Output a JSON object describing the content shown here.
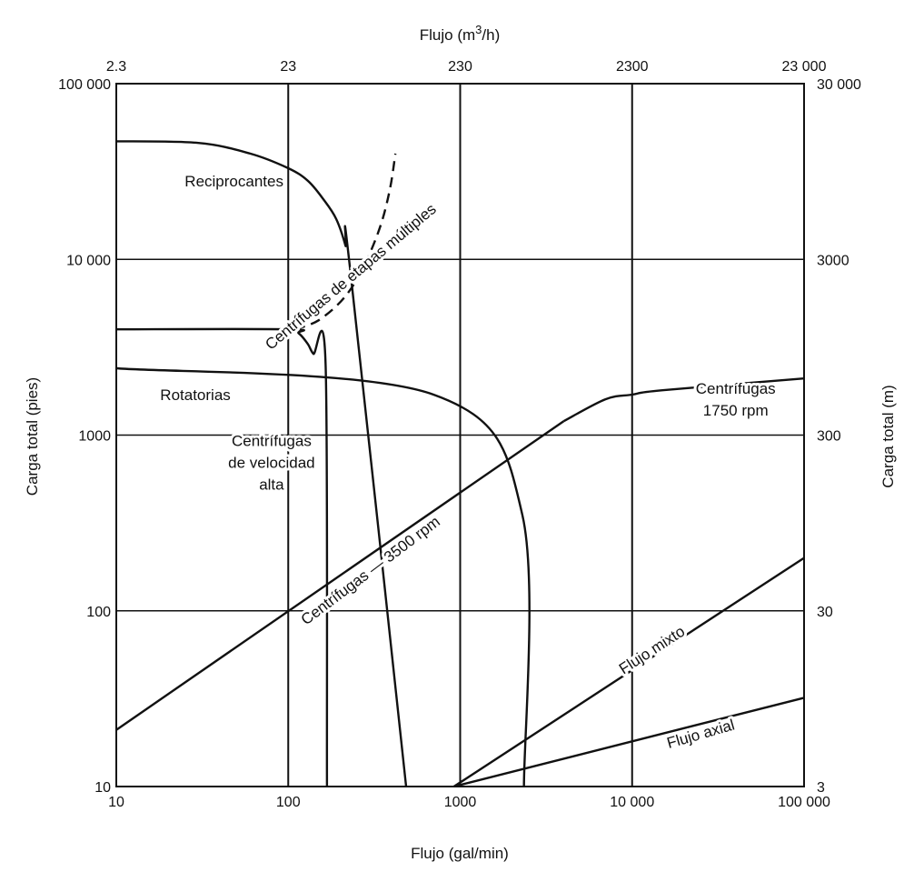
{
  "chart_data": {
    "type": "line",
    "x_scale": "log",
    "y_scale": "log",
    "grid": true,
    "x_bottom": {
      "label": "Flujo (gal/min)",
      "range": [
        10,
        100000
      ],
      "ticks": [
        10,
        100,
        1000,
        10000,
        100000
      ],
      "tick_labels": [
        "10",
        "100",
        "1000",
        "10 000",
        "100 000"
      ]
    },
    "x_top": {
      "label": "Flujo (m",
      "label_sup": "3",
      "label_tail": "/h)",
      "tick_labels": [
        "2.3",
        "23",
        "230",
        "2300",
        "23 000"
      ]
    },
    "y_left": {
      "label": "Carga total (pies)",
      "range": [
        10,
        100000
      ],
      "ticks": [
        10,
        100,
        1000,
        10000,
        100000
      ],
      "tick_labels": [
        "10",
        "100",
        "1000",
        "10 000",
        "100 000"
      ]
    },
    "y_right": {
      "label": "Carga total (m)",
      "tick_labels": [
        "3",
        "30",
        "300",
        "3000",
        "30 000"
      ]
    },
    "series": [
      {
        "name": "Reciprocantes",
        "style": "solid",
        "points": [
          [
            10,
            47000
          ],
          [
            30,
            46000
          ],
          [
            60,
            40000
          ],
          [
            100,
            33000
          ],
          [
            130,
            28000
          ],
          [
            160,
            22000
          ],
          [
            190,
            17000
          ],
          [
            215,
            12000
          ],
          [
            230,
            8500
          ],
          [
            485,
            10
          ]
        ]
      },
      {
        "name": "Centrífugas de etapas múltiples",
        "style": "dashed",
        "points": [
          [
            110,
            4000
          ],
          [
            150,
            4500
          ],
          [
            210,
            6000
          ],
          [
            270,
            8800
          ],
          [
            340,
            15000
          ],
          [
            390,
            25000
          ],
          [
            420,
            40000
          ]
        ]
      },
      {
        "name": "Centrífugas de velocidad alta",
        "style": "solid",
        "points": [
          [
            10,
            4000
          ],
          [
            100,
            4000
          ],
          [
            115,
            3800
          ],
          [
            130,
            3300
          ],
          [
            140,
            2900
          ],
          [
            165,
            2500
          ],
          [
            168,
            10
          ]
        ]
      },
      {
        "name": "Rotatorias",
        "style": "solid",
        "points": [
          [
            10,
            2400
          ],
          [
            700,
            1700
          ],
          [
            2300,
            350
          ],
          [
            2350,
            10
          ]
        ]
      },
      {
        "name": "Centrífugas 1750 rpm",
        "style": "solid",
        "points": [
          [
            4000,
            1200
          ],
          [
            7000,
            1600
          ],
          [
            10000,
            1700
          ],
          [
            15000,
            1800
          ],
          [
            100000,
            2100
          ]
        ]
      },
      {
        "name": "Centrífugas — 3500 rpm",
        "style": "solid",
        "points": [
          [
            10,
            21
          ],
          [
            4000,
            1200
          ]
        ]
      },
      {
        "name": "Flujo mixto",
        "style": "solid",
        "points": [
          [
            920,
            10
          ],
          [
            100000,
            200
          ]
        ]
      },
      {
        "name": "Flujo axial",
        "style": "solid",
        "points": [
          [
            920,
            10
          ],
          [
            100000,
            32
          ]
        ]
      }
    ],
    "annotations": [
      {
        "lines": [
          "Reciprocantes"
        ],
        "at": [
          25,
          28000
        ],
        "rotate": 0,
        "anchor": "start"
      },
      {
        "lines": [
          "Centrífugas de etapas múltiples"
        ],
        "at": [
          230,
          8000
        ],
        "rotate": -40,
        "anchor": "middle"
      },
      {
        "lines": [
          "Rotatorias"
        ],
        "at": [
          18,
          1700
        ],
        "rotate": 0,
        "anchor": "start"
      },
      {
        "lines": [
          "Centrífugas",
          "de velocidad",
          "alta"
        ],
        "at": [
          80,
          700
        ],
        "rotate": 0,
        "anchor": "middle"
      },
      {
        "lines": [
          "Centrífugas",
          "1750 rpm"
        ],
        "at": [
          40000,
          1600
        ],
        "rotate": 0,
        "anchor": "middle"
      },
      {
        "lines": [
          "Centrífugas — 3500 rpm"
        ],
        "at": [
          300,
          170
        ],
        "rotate": -37,
        "anchor": "middle"
      },
      {
        "lines": [
          "Flujo mixto"
        ],
        "at": [
          13000,
          60
        ],
        "rotate": -33,
        "anchor": "middle"
      },
      {
        "lines": [
          "Flujo axial"
        ],
        "at": [
          25000,
          20
        ],
        "rotate": -16,
        "anchor": "middle"
      }
    ]
  }
}
